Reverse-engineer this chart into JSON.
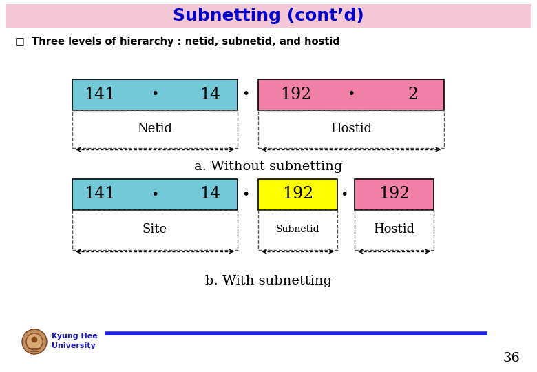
{
  "title": "Subnetting (cont’d)",
  "title_color": "#0000CC",
  "title_bg": "#F5C8D8",
  "bullet_text": "□  Three levels of hierarchy : netid, subnetid, and hostid",
  "cyan_color": "#74C9D8",
  "pink_color": "#F080A8",
  "yellow_color": "#FFFF00",
  "white_bg": "#FFFFFF",
  "diagram_a_label": "a. Without subnetting",
  "diagram_b_label": "b. With subnetting",
  "footer_line_color": "#2020EE",
  "page_number": "36",
  "university_text_line1": "Kyung Hee",
  "university_text_line2": "University"
}
